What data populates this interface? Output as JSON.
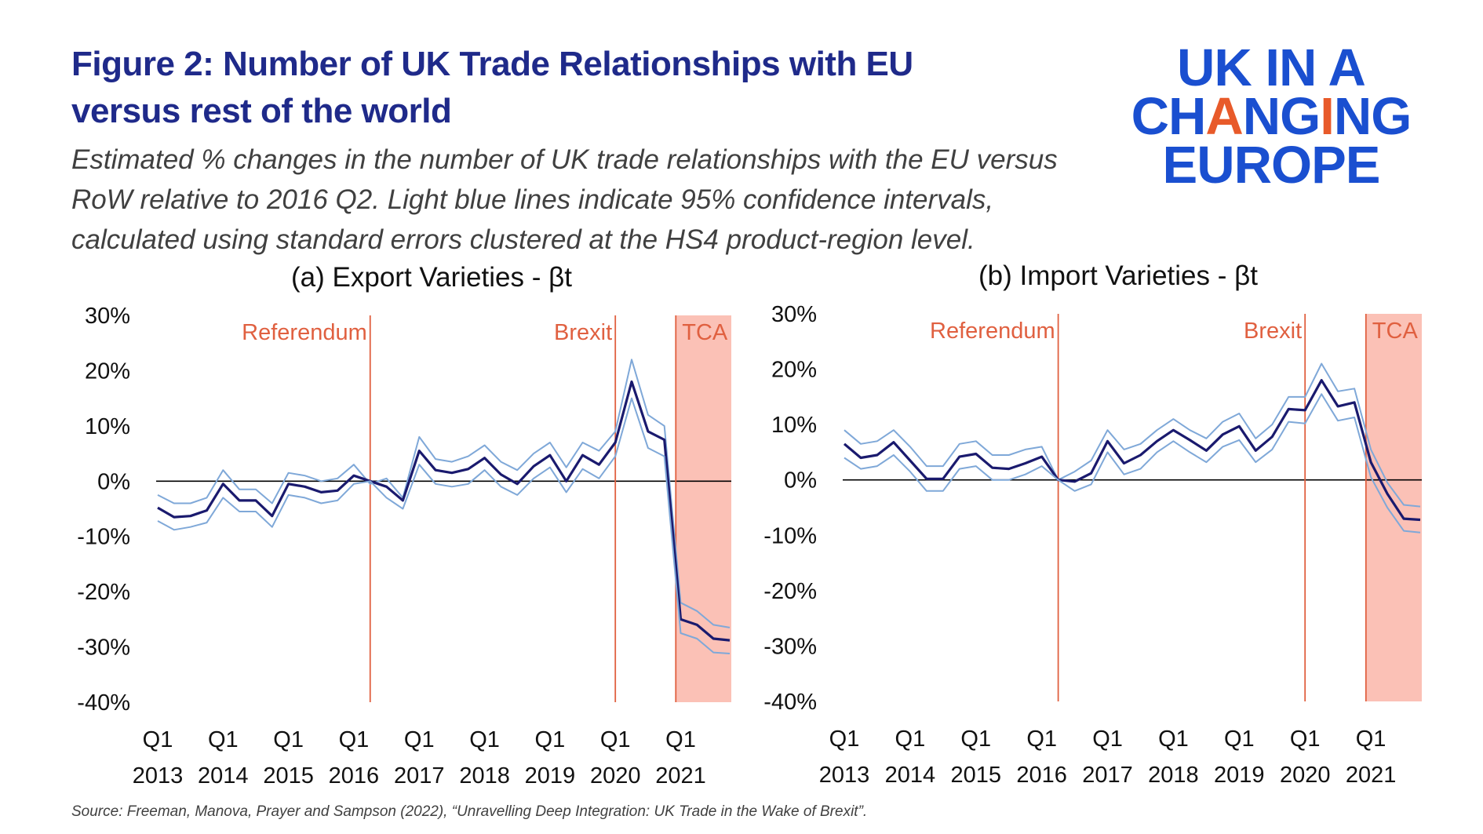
{
  "header": {
    "title": "Figure 2: Number of UK Trade Relationships with EU versus rest of the world",
    "subtitle": "Estimated % changes in the number of UK trade relationships with the EU versus RoW relative to 2016 Q2. Light blue lines indicate 95% confidence intervals, calculated using standard errors clustered at the HS4 product-region level."
  },
  "logo": {
    "line1": "UK IN A",
    "line2_pre": "CH",
    "line2_accent1": "A",
    "line2_mid": "NG",
    "line2_accent2": "I",
    "line2_post": "NG",
    "line3": "EUROPE"
  },
  "footer": {
    "source": "Source: Freeman, Manova, Prayer and Sampson (2022), “Unravelling Deep Integration: UK Trade in the Wake of Brexit”."
  },
  "colors": {
    "estimate": "#1a1a6e",
    "ci": "#7fa8d8",
    "event": "#e06040",
    "tca_shade": "#fbc1b6",
    "zero": "#000000",
    "title": "#1f2a8a",
    "logo": "#1a4fd0",
    "logo_accent": "#e85a2a"
  },
  "chart_data": [
    {
      "type": "line",
      "title": "(a) Export Varieties - βt",
      "ylim": [
        -40,
        30
      ],
      "yticks": [
        30,
        20,
        10,
        0,
        -10,
        -20,
        -30,
        -40
      ],
      "ytick_labels": [
        "30%",
        "20%",
        "10%",
        "0%",
        "-10%",
        "-20%",
        "-30%",
        "-40%"
      ],
      "xtick_labels": [
        [
          "Q1",
          "2013"
        ],
        [
          "Q1",
          "2014"
        ],
        [
          "Q1",
          "2015"
        ],
        [
          "Q1",
          "2016"
        ],
        [
          "Q1",
          "2017"
        ],
        [
          "Q1",
          "2018"
        ],
        [
          "Q1",
          "2019"
        ],
        [
          "Q1",
          "2020"
        ],
        [
          "Q1",
          "2021"
        ]
      ],
      "x_start": "2013 Q1",
      "events": [
        {
          "label": "Referendum",
          "quarter_index": 13
        },
        {
          "label": "Brexit",
          "quarter_index": 28
        },
        {
          "label": "TCA",
          "quarter_index": 31.7,
          "shaded": true
        }
      ],
      "series": [
        {
          "role": "upper_ci",
          "values": [
            -2.5,
            -4,
            -4,
            -3,
            2,
            -1.5,
            -1.5,
            -4,
            1.5,
            1,
            0,
            0.5,
            3,
            -0.5,
            0.5,
            -3,
            8,
            4,
            3.5,
            4.5,
            6.5,
            3.5,
            2,
            5,
            7,
            2.5,
            7,
            5.5,
            9,
            22,
            12,
            10,
            -22,
            -23.5,
            -26,
            -26.5
          ]
        },
        {
          "role": "estimate",
          "values": [
            -4.8,
            -6.5,
            -6.3,
            -5.3,
            -0.5,
            -3.5,
            -3.5,
            -6.3,
            -0.5,
            -1,
            -2,
            -1.7,
            1,
            0,
            -1,
            -3.5,
            5.5,
            2,
            1.5,
            2.2,
            4.2,
            1.2,
            -0.5,
            2.7,
            4.7,
            0,
            4.7,
            3,
            7,
            18,
            9,
            7.5,
            -25,
            -26,
            -28.5,
            -28.8
          ]
        },
        {
          "role": "lower_ci",
          "values": [
            -7.2,
            -8.8,
            -8.3,
            -7.5,
            -3,
            -5.5,
            -5.5,
            -8.3,
            -2.5,
            -3,
            -4,
            -3.5,
            -0.5,
            0,
            -3,
            -5,
            3,
            -0.5,
            -1,
            -0.5,
            2,
            -1,
            -2.5,
            0.5,
            2.5,
            -2,
            2.2,
            0.5,
            4.5,
            15,
            6,
            4.5,
            -27.5,
            -28.5,
            -31,
            -31.2
          ]
        }
      ]
    },
    {
      "type": "line",
      "title": "(b) Import Varieties - βt",
      "ylim": [
        -40,
        30
      ],
      "yticks": [
        30,
        20,
        10,
        0,
        -10,
        -20,
        -30,
        -40
      ],
      "ytick_labels": [
        "30%",
        "20%",
        "10%",
        "0%",
        "-10%",
        "-20%",
        "-30%",
        "-40%"
      ],
      "xtick_labels": [
        [
          "Q1",
          "2013"
        ],
        [
          "Q1",
          "2014"
        ],
        [
          "Q1",
          "2015"
        ],
        [
          "Q1",
          "2016"
        ],
        [
          "Q1",
          "2017"
        ],
        [
          "Q1",
          "2018"
        ],
        [
          "Q1",
          "2019"
        ],
        [
          "Q1",
          "2020"
        ],
        [
          "Q1",
          "2021"
        ]
      ],
      "x_start": "2013 Q1",
      "events": [
        {
          "label": "Referendum",
          "quarter_index": 13
        },
        {
          "label": "Brexit",
          "quarter_index": 28
        },
        {
          "label": "TCA",
          "quarter_index": 31.7,
          "shaded": true
        }
      ],
      "series": [
        {
          "role": "upper_ci",
          "values": [
            9,
            6.5,
            7,
            9,
            6,
            2.5,
            2.5,
            6.5,
            7,
            4.5,
            4.5,
            5.5,
            6,
            0,
            1.5,
            3.5,
            9,
            5.5,
            6.5,
            9,
            11,
            9,
            7.5,
            10.5,
            12,
            7.5,
            10,
            15,
            15,
            21,
            16,
            16.5,
            5.5,
            -0.5,
            -4.5,
            -4.8
          ]
        },
        {
          "role": "estimate",
          "values": [
            6.5,
            4,
            4.5,
            6.8,
            3.5,
            0.2,
            0.2,
            4.2,
            4.7,
            2.2,
            2,
            3,
            4.2,
            0,
            -0.3,
            1.2,
            7,
            3,
            4.5,
            7,
            9,
            7.2,
            5.3,
            8.2,
            9.7,
            5.3,
            7.8,
            12.8,
            12.6,
            18,
            13.3,
            14,
            3.2,
            -2.5,
            -7,
            -7.2
          ]
        },
        {
          "role": "lower_ci",
          "values": [
            4,
            2,
            2.5,
            4.5,
            1.5,
            -2,
            -2,
            2,
            2.5,
            0,
            0,
            1,
            2.5,
            0,
            -2,
            -0.8,
            5,
            1,
            2,
            5,
            7,
            5,
            3.2,
            6,
            7.2,
            3.2,
            5.5,
            10.5,
            10.2,
            15.5,
            10.7,
            11.3,
            0.5,
            -5,
            -9.2,
            -9.5
          ]
        }
      ]
    }
  ]
}
